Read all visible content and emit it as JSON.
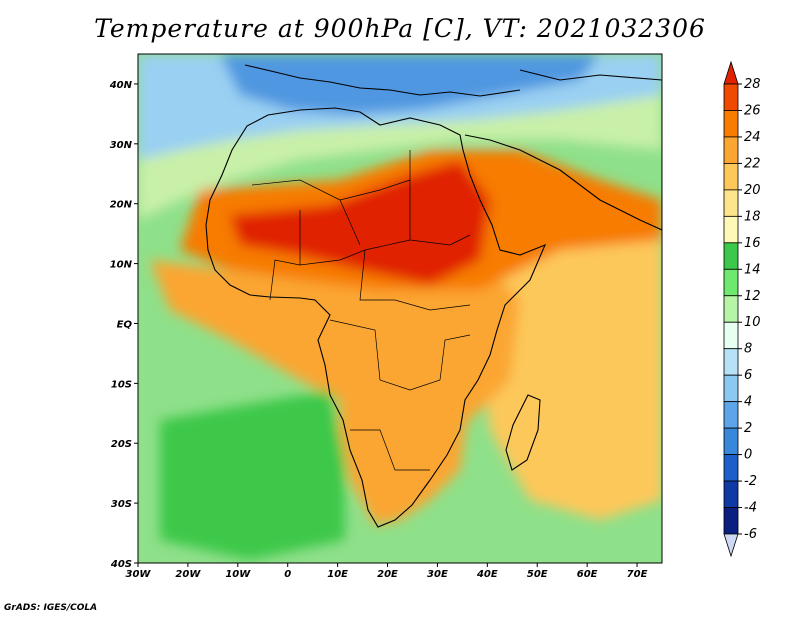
{
  "title": "Temperature at 900hPa [C], VT: 2021032306",
  "credit": "GrADS: IGES/COLA",
  "map": {
    "lon_range": [
      -30,
      75
    ],
    "lat_range": [
      -40,
      45
    ],
    "x_ticks": [
      "30W",
      "20W",
      "10W",
      "0",
      "10E",
      "20E",
      "30E",
      "40E",
      "50E",
      "60E",
      "70E"
    ],
    "y_ticks": [
      "40S",
      "30S",
      "20S",
      "10S",
      "EQ",
      "10N",
      "20N",
      "30N",
      "40N"
    ]
  },
  "colorbar": {
    "labels": [
      "28",
      "26",
      "24",
      "22",
      "20",
      "18",
      "16",
      "14",
      "12",
      "10",
      "8",
      "6",
      "4",
      "2",
      "0",
      "-2",
      "-4",
      "-6"
    ],
    "colors": [
      "#e02200",
      "#f04a00",
      "#f77c00",
      "#fba630",
      "#fdc85a",
      "#fee58c",
      "#fff9b8",
      "#3cc84a",
      "#6ee86e",
      "#b5f5a5",
      "#e6fff0",
      "#b7e1f7",
      "#8cc8f0",
      "#5ca5e8",
      "#3787da",
      "#1d5fc8",
      "#0f3aa6",
      "#0a1f80",
      "#cfd9f4"
    ]
  },
  "field": {
    "background_color": "#8fe08a",
    "zones": [
      {
        "name": "europe-cold",
        "color": "#4f97e0"
      },
      {
        "name": "mediterranean-cool",
        "color": "#9ad0f2"
      },
      {
        "name": "north-africa-mild",
        "color": "#c9f0a8"
      },
      {
        "name": "sahel-warm",
        "color": "#f77c00"
      },
      {
        "name": "sahel-hot",
        "color": "#e02200"
      },
      {
        "name": "central-africa",
        "color": "#fba630"
      },
      {
        "name": "southern-africa",
        "color": "#fba630"
      },
      {
        "name": "south-atlantic",
        "color": "#3cc84a"
      },
      {
        "name": "indian-ocean",
        "color": "#fdc85a"
      }
    ]
  }
}
